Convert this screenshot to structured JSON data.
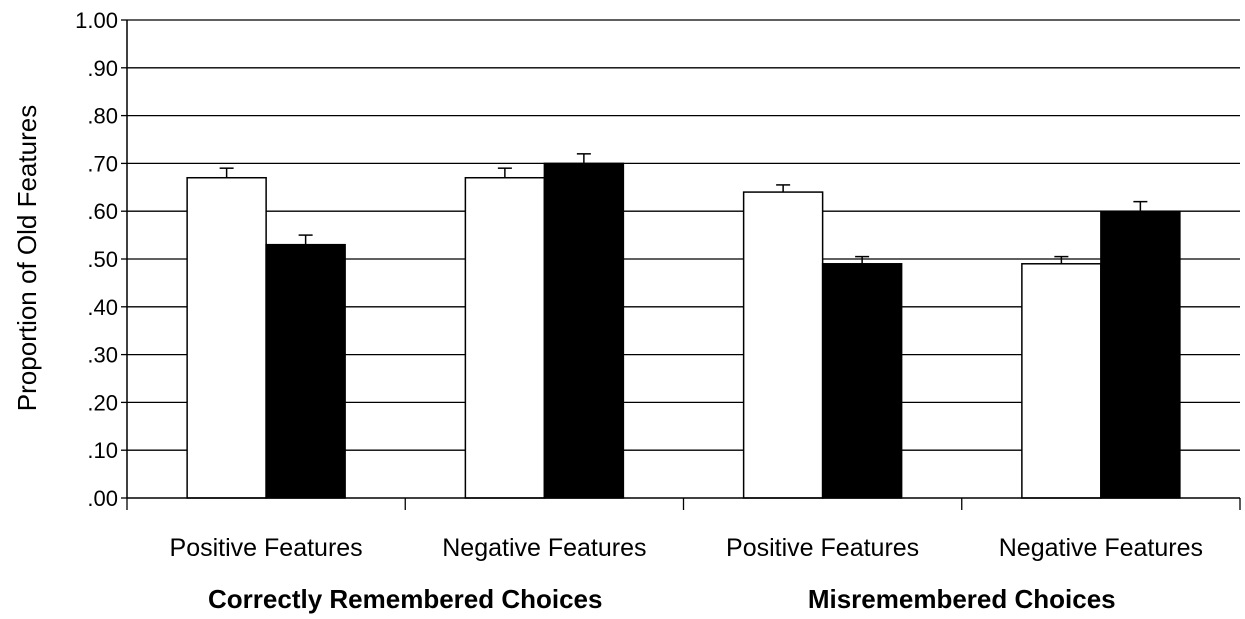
{
  "chart_data": {
    "type": "bar",
    "title": "",
    "ylabel": "Proportion of Old Features",
    "xlabel": "",
    "ylim": [
      0,
      1.0
    ],
    "yticks": [
      {
        "value": 0.0,
        "label": ".00"
      },
      {
        "value": 0.1,
        "label": ".10"
      },
      {
        "value": 0.2,
        "label": ".20"
      },
      {
        "value": 0.3,
        "label": ".30"
      },
      {
        "value": 0.4,
        "label": ".40"
      },
      {
        "value": 0.5,
        "label": ".50"
      },
      {
        "value": 0.6,
        "label": ".60"
      },
      {
        "value": 0.7,
        "label": ".70"
      },
      {
        "value": 0.8,
        "label": ".80"
      },
      {
        "value": 0.9,
        "label": ".90"
      },
      {
        "value": 1.0,
        "label": "1.00"
      }
    ],
    "grid": true,
    "legend": "none",
    "categories": [
      "Positive Features",
      "Negative Features",
      "Positive Features",
      "Negative Features"
    ],
    "groups": [
      {
        "label": "Correctly Remembered Choices",
        "categories": [
          0,
          1
        ]
      },
      {
        "label": "Misremembered Choices",
        "categories": [
          2,
          3
        ]
      }
    ],
    "series": [
      {
        "color": "#ffffff",
        "values": [
          0.67,
          0.67,
          0.64,
          0.49
        ],
        "errors": [
          0.02,
          0.02,
          0.015,
          0.015
        ]
      },
      {
        "color": "#000000",
        "values": [
          0.53,
          0.7,
          0.49,
          0.6
        ],
        "errors": [
          0.02,
          0.02,
          0.015,
          0.02
        ]
      }
    ]
  }
}
